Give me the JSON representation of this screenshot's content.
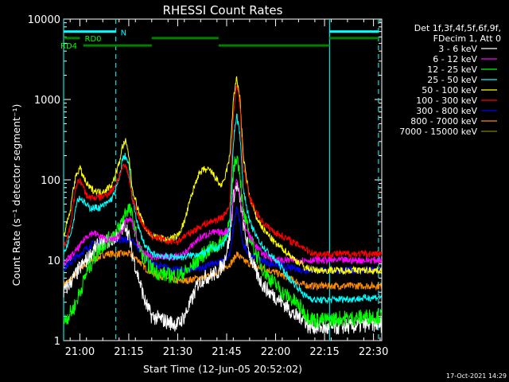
{
  "chart_data": {
    "type": "line",
    "title": "RHESSI Count Rates",
    "xlabel": "Start Time (12-Jun-05 20:52:02)",
    "ylabel": "Count Rate (s⁻¹ detector segment⁻¹)",
    "yscale": "log",
    "ylim": [
      1,
      10000
    ],
    "xlim_minutes_after_start": [
      3.0,
      100.5
    ],
    "x_unit": "minutes after 20:52:02",
    "xticks": [
      {
        "t": 7.97,
        "label": "21:00"
      },
      {
        "t": 22.97,
        "label": "21:15"
      },
      {
        "t": 37.97,
        "label": "21:30"
      },
      {
        "t": 52.97,
        "label": "21:45"
      },
      {
        "t": 67.97,
        "label": "22:00"
      },
      {
        "t": 82.97,
        "label": "22:15"
      },
      {
        "t": 97.97,
        "label": "22:30"
      }
    ],
    "yticks": [
      {
        "v": 1,
        "label": "1"
      },
      {
        "v": 10,
        "label": "10"
      },
      {
        "v": 100,
        "label": "100"
      },
      {
        "v": 1000,
        "label": "1000"
      },
      {
        "v": 10000,
        "label": "10000"
      }
    ],
    "legend_header": [
      "Det 1f,3f,4f,5f,6f,9f,",
      "FDecim 1, Att 0"
    ],
    "legend_position": "right",
    "grid": false,
    "series": [
      {
        "name": "3 - 6 keV",
        "color": "#ffffff",
        "x": [
          3,
          6,
          8,
          10,
          12,
          14,
          16,
          18,
          19,
          20,
          21,
          22,
          23,
          24,
          26,
          28,
          30,
          32,
          35,
          38,
          40,
          42,
          44,
          46,
          48,
          50,
          52,
          54,
          55,
          56,
          57,
          58,
          59,
          60,
          62,
          64,
          66,
          68,
          70,
          72,
          74,
          76,
          77,
          78,
          80,
          84,
          88,
          92,
          96,
          100.5
        ],
        "y": [
          4,
          6,
          8,
          10,
          13,
          16,
          17,
          18,
          20,
          22,
          25,
          28,
          20,
          12,
          6,
          3,
          2,
          1.9,
          1.7,
          1.6,
          2,
          3,
          5,
          6,
          6.5,
          7,
          9,
          20,
          60,
          85,
          60,
          30,
          18,
          12,
          7,
          5,
          4,
          3.5,
          3,
          2.5,
          2,
          2,
          1.8,
          1.5,
          1.5,
          1.4,
          1.5,
          1.5,
          1.6,
          1.6
        ]
      },
      {
        "name": "6 - 12 keV",
        "color": "#ff00ff",
        "x": [
          3,
          6,
          8,
          10,
          12,
          14,
          16,
          18,
          20,
          22,
          23,
          24,
          26,
          28,
          30,
          35,
          38,
          40,
          44,
          46,
          48,
          50,
          52,
          54,
          55,
          56,
          57,
          58,
          60,
          62,
          64,
          66,
          68,
          70,
          72,
          74,
          76,
          77,
          78,
          80,
          84,
          88,
          92,
          96,
          100.5
        ],
        "y": [
          9,
          12,
          15,
          20,
          22,
          20,
          18,
          18,
          20,
          30,
          32,
          30,
          15,
          12,
          11,
          11,
          11,
          12,
          18,
          20,
          22,
          22,
          22,
          25,
          60,
          100,
          70,
          30,
          20,
          15,
          12,
          11,
          10,
          10,
          10,
          10,
          10,
          10,
          10,
          10,
          10,
          10,
          10,
          10,
          10
        ]
      },
      {
        "name": "12 - 25 keV",
        "color": "#00ff00",
        "x": [
          3,
          6,
          8,
          10,
          12,
          14,
          16,
          18,
          20,
          22,
          23,
          24,
          26,
          28,
          30,
          32,
          35,
          38,
          40,
          42,
          44,
          46,
          48,
          50,
          52,
          54,
          55,
          56,
          57,
          58,
          60,
          62,
          64,
          66,
          68,
          70,
          72,
          74,
          76,
          77,
          78,
          80,
          84,
          88,
          92,
          96,
          100.5
        ],
        "y": [
          1.7,
          2.5,
          4,
          7,
          10,
          14,
          17,
          20,
          25,
          40,
          45,
          35,
          15,
          10,
          8,
          7,
          6.5,
          6.5,
          7,
          8,
          10,
          12,
          14,
          15,
          18,
          30,
          130,
          200,
          130,
          40,
          20,
          12,
          8,
          6,
          5,
          4,
          3.5,
          3,
          2.5,
          2.2,
          2,
          1.8,
          1.8,
          1.9,
          1.9,
          2,
          2
        ]
      },
      {
        "name": "25 - 50 keV",
        "color": "#00ffff",
        "x": [
          3,
          4,
          6,
          7,
          8,
          9,
          10,
          11,
          12,
          14,
          16,
          18,
          20,
          21,
          22,
          23,
          24,
          26,
          28,
          30,
          35,
          40,
          44,
          46,
          48,
          50,
          52,
          54,
          55,
          56,
          57,
          58,
          60,
          62,
          64,
          66,
          68,
          70,
          72,
          74,
          76,
          77,
          78,
          80,
          84,
          88,
          92,
          96,
          100.5
        ],
        "y": [
          12,
          15,
          30,
          55,
          60,
          55,
          48,
          45,
          45,
          45,
          50,
          60,
          100,
          180,
          200,
          150,
          60,
          25,
          15,
          12,
          11,
          11,
          12,
          12,
          14,
          14,
          16,
          25,
          300,
          650,
          400,
          80,
          30,
          20,
          15,
          12,
          10,
          8,
          6,
          5,
          4,
          3.6,
          3.5,
          3.2,
          3.2,
          3.3,
          3.3,
          3.4,
          3.5
        ]
      },
      {
        "name": "50 - 100 keV",
        "color": "#ffff00",
        "x": [
          3,
          5,
          6,
          7,
          8,
          9,
          10,
          11,
          12,
          14,
          16,
          18,
          20,
          21,
          22,
          23,
          24,
          26,
          28,
          30,
          35,
          38,
          40,
          42,
          44,
          46,
          48,
          50,
          51,
          52,
          54,
          55,
          56,
          57,
          58,
          60,
          62,
          64,
          66,
          68,
          70,
          72,
          74,
          76,
          77,
          78,
          80,
          84,
          88,
          92,
          96,
          100.5
        ],
        "y": [
          20,
          40,
          80,
          120,
          140,
          110,
          90,
          80,
          75,
          70,
          75,
          90,
          160,
          260,
          300,
          200,
          80,
          40,
          25,
          20,
          18,
          20,
          30,
          60,
          110,
          135,
          130,
          100,
          85,
          90,
          200,
          1000,
          1800,
          1100,
          200,
          60,
          35,
          25,
          20,
          16,
          14,
          12,
          10,
          9,
          8,
          8,
          7.5,
          7.5,
          7.5,
          7.5,
          7.5,
          7.5
        ]
      },
      {
        "name": "100 - 300 keV",
        "color": "#ff0000",
        "x": [
          3,
          5,
          6,
          7,
          8,
          9,
          10,
          11,
          12,
          14,
          16,
          18,
          20,
          21,
          22,
          23,
          24,
          26,
          28,
          30,
          35,
          38,
          40,
          42,
          44,
          46,
          48,
          50,
          52,
          54,
          55,
          56,
          57,
          58,
          60,
          62,
          64,
          66,
          68,
          70,
          72,
          74,
          76,
          77,
          78,
          80,
          84,
          88,
          92,
          96,
          100.5
        ],
        "y": [
          14,
          25,
          50,
          90,
          100,
          80,
          65,
          60,
          60,
          60,
          65,
          75,
          110,
          140,
          150,
          110,
          60,
          35,
          25,
          20,
          17,
          17,
          20,
          22,
          25,
          28,
          30,
          32,
          35,
          50,
          600,
          1600,
          900,
          150,
          60,
          40,
          30,
          25,
          22,
          20,
          18,
          16,
          15,
          14,
          13,
          12,
          12,
          12,
          12,
          12,
          12
        ]
      },
      {
        "name": "300 - 800 keV",
        "color": "#0000ff",
        "x": [
          3,
          6,
          8,
          10,
          12,
          14,
          16,
          18,
          20,
          22,
          23,
          24,
          26,
          28,
          30,
          35,
          38,
          40,
          44,
          46,
          48,
          50,
          52,
          54,
          55,
          56,
          57,
          58,
          60,
          62,
          64,
          66,
          68,
          70,
          72,
          74,
          76,
          77,
          78,
          80,
          84,
          88,
          92,
          96,
          100.5
        ],
        "y": [
          8,
          10,
          12,
          14,
          16,
          17,
          18,
          18,
          18,
          18,
          18,
          17,
          14,
          11,
          9,
          8,
          7.5,
          7.5,
          8,
          8,
          9,
          9,
          10,
          12,
          25,
          45,
          30,
          15,
          12,
          11,
          10,
          9,
          9,
          8.5,
          8,
          8,
          7.5,
          7.5,
          7.5,
          7.5,
          7.5,
          7.5,
          7.5,
          7.5,
          7.5
        ]
      },
      {
        "name": "800 - 7000 keV",
        "color": "#ff8c00",
        "x": [
          3,
          6,
          8,
          10,
          12,
          14,
          16,
          18,
          20,
          22,
          23,
          24,
          26,
          28,
          30,
          35,
          38,
          40,
          44,
          46,
          48,
          50,
          52,
          54,
          55,
          56,
          57,
          58,
          60,
          62,
          64,
          66,
          68,
          70,
          72,
          74,
          76,
          77,
          78,
          80,
          84,
          88,
          92,
          96,
          100.5
        ],
        "y": [
          5,
          6,
          8,
          9,
          10,
          11,
          12,
          12,
          12,
          12,
          12,
          11.5,
          10,
          8,
          7,
          6,
          5.5,
          5.5,
          6,
          6,
          6.5,
          7,
          8,
          9,
          10,
          12,
          11,
          10,
          9,
          8,
          8,
          7.5,
          7,
          6.5,
          6,
          5.5,
          5,
          5,
          4.8,
          4.8,
          4.8,
          4.8,
          4.8,
          4.8,
          4.8
        ]
      },
      {
        "name": "7000 - 15000 keV",
        "color": "#808000",
        "x": [],
        "y": []
      }
    ],
    "annotations": {
      "attenuator_intervals": [
        {
          "label": "",
          "t0": 3.0,
          "t1": 19.0,
          "level": 7000
        },
        {
          "label": "N",
          "t0": 84.5,
          "t1": 99.5,
          "level": 7000
        }
      ],
      "decimation_intervals": [
        {
          "label": "RD0",
          "t0": 3.0,
          "t1": 8.0,
          "level": 5800
        },
        {
          "label": "RD4",
          "t0": 9.0,
          "t1": 30.0,
          "level": 4700
        },
        {
          "label": "",
          "t0": 30.0,
          "t1": 50.5,
          "level": 5800
        },
        {
          "label": "",
          "t0": 50.5,
          "t1": 84.5,
          "level": 4700
        },
        {
          "label": "",
          "t0": 84.5,
          "t1": 99.5,
          "level": 5800
        }
      ],
      "night_boundaries_solid": [
        3.0,
        84.5
      ],
      "saa_boundaries_dashed": [
        19.0,
        99.5
      ]
    }
  },
  "footer": {
    "timestamp": "17-Oct-2021 14:29"
  }
}
